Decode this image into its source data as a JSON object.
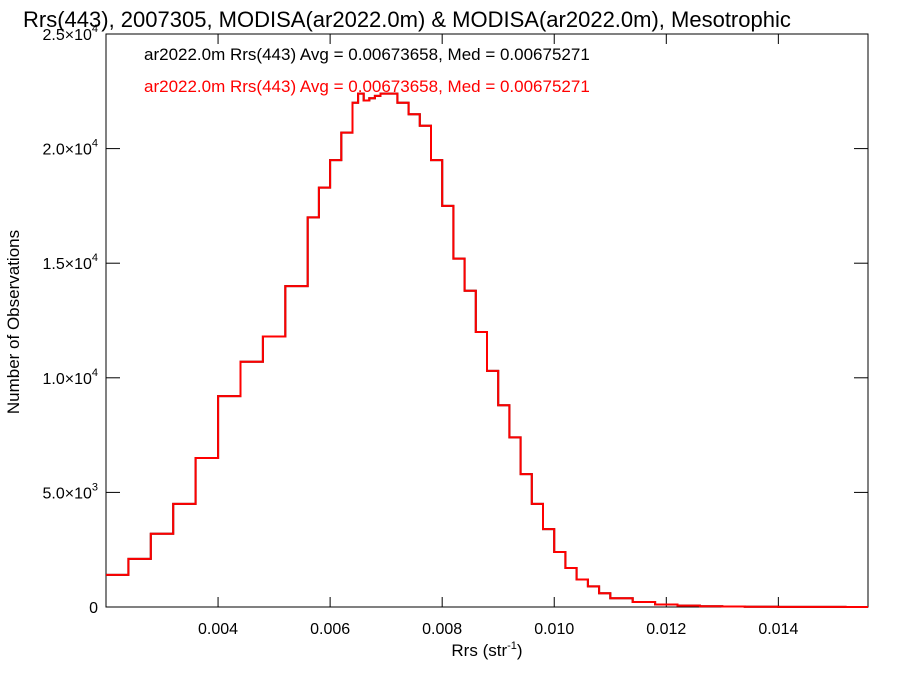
{
  "chart_data": {
    "type": "histogram",
    "title": "Rrs(443), 2007305, MODISA(ar2022.0m) & MODISA(ar2022.0m), Mesotrophic",
    "xlabel": "Rrs (str",
    "xlabel_sup": "-1",
    "xlabel_close": ")",
    "ylabel": "Number of Observations",
    "xlim": [
      0.002,
      0.0156
    ],
    "ylim": [
      0,
      25000
    ],
    "grid": false,
    "legend_position": "top-left",
    "x_ticks": [
      0.004,
      0.006,
      0.008,
      0.01,
      0.012,
      0.014
    ],
    "x_tick_labels": [
      "0.004",
      "0.006",
      "0.008",
      "0.010",
      "0.012",
      "0.014"
    ],
    "y_ticks": [
      0,
      5000,
      10000,
      15000,
      20000,
      25000
    ],
    "y_tick_labels": [
      {
        "mant": "0",
        "exp": ""
      },
      {
        "mant": "5.0×10",
        "exp": "3"
      },
      {
        "mant": "1.0×10",
        "exp": "4"
      },
      {
        "mant": "1.5×10",
        "exp": "4"
      },
      {
        "mant": "2.0×10",
        "exp": "4"
      },
      {
        "mant": "2.5×10",
        "exp": "4"
      }
    ],
    "series": [
      {
        "name": "ar2022.0m Rrs(443) Avg = 0.00673658, Med = 0.00675271",
        "color": "#000000",
        "x": [
          0.002,
          0.0024,
          0.0028,
          0.0032,
          0.0036,
          0.004,
          0.0044,
          0.0048,
          0.0052,
          0.0056,
          0.0058,
          0.006,
          0.0062,
          0.0064,
          0.0065,
          0.0066,
          0.0067,
          0.0068,
          0.0069,
          0.007,
          0.0072,
          0.0074,
          0.0076,
          0.0078,
          0.008,
          0.0082,
          0.0084,
          0.0086,
          0.0088,
          0.009,
          0.0092,
          0.0094,
          0.0096,
          0.0098,
          0.01,
          0.0102,
          0.0104,
          0.0106,
          0.0108,
          0.011,
          0.0114,
          0.0118,
          0.0122,
          0.0126,
          0.013,
          0.0134,
          0.014,
          0.0146,
          0.0152,
          0.0156
        ],
        "y": [
          1400,
          2100,
          3200,
          4500,
          6500,
          9200,
          10700,
          11800,
          14000,
          17000,
          18300,
          19500,
          20700,
          22000,
          22400,
          22100,
          22200,
          22300,
          22400,
          22400,
          22000,
          21500,
          21000,
          19500,
          17500,
          15200,
          13800,
          12000,
          10300,
          8800,
          7400,
          5800,
          4500,
          3400,
          2400,
          1700,
          1200,
          900,
          600,
          380,
          220,
          110,
          60,
          35,
          20,
          10,
          6,
          4,
          2,
          0
        ]
      },
      {
        "name": "ar2022.0m Rrs(443) Avg = 0.00673658, Med = 0.00675271",
        "color": "#ff0000",
        "x": [
          0.002,
          0.0024,
          0.0028,
          0.0032,
          0.0036,
          0.004,
          0.0044,
          0.0048,
          0.0052,
          0.0056,
          0.0058,
          0.006,
          0.0062,
          0.0064,
          0.0065,
          0.0066,
          0.0067,
          0.0068,
          0.0069,
          0.007,
          0.0072,
          0.0074,
          0.0076,
          0.0078,
          0.008,
          0.0082,
          0.0084,
          0.0086,
          0.0088,
          0.009,
          0.0092,
          0.0094,
          0.0096,
          0.0098,
          0.01,
          0.0102,
          0.0104,
          0.0106,
          0.0108,
          0.011,
          0.0114,
          0.0118,
          0.0122,
          0.0126,
          0.013,
          0.0134,
          0.014,
          0.0146,
          0.0152,
          0.0156
        ],
        "y": [
          1400,
          2100,
          3200,
          4500,
          6500,
          9200,
          10700,
          11800,
          14000,
          17000,
          18300,
          19500,
          20700,
          22000,
          22400,
          22100,
          22200,
          22300,
          22400,
          22400,
          22000,
          21500,
          21000,
          19500,
          17500,
          15200,
          13800,
          12000,
          10300,
          8800,
          7400,
          5800,
          4500,
          3400,
          2400,
          1700,
          1200,
          900,
          600,
          380,
          220,
          110,
          60,
          35,
          20,
          10,
          6,
          4,
          2,
          0
        ]
      }
    ]
  }
}
